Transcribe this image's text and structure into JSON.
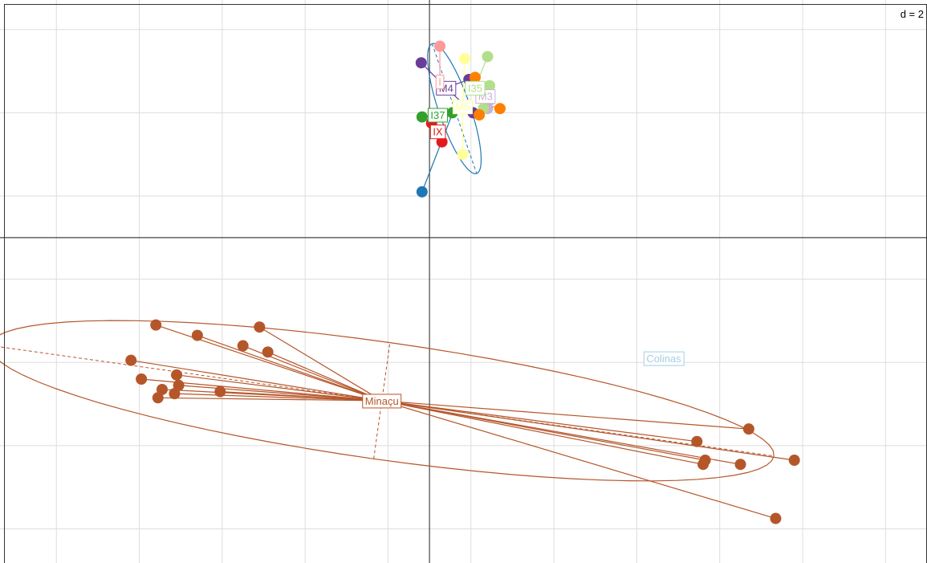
{
  "chart_data": {
    "type": "scatter",
    "scale_label": "d = 2",
    "grid": true,
    "xlim": [
      -10.36,
      12.0
    ],
    "ylim": [
      -7.82,
      5.71
    ],
    "groups": [
      {
        "name": "Minaçu",
        "color": "#B5562A",
        "center": [
          -1.15,
          -3.92
        ],
        "ellipse": {
          "rx": 9.55,
          "ry": 1.41,
          "rotation_deg": -8.0
        },
        "points": [
          [
            -6.6,
            -2.1
          ],
          [
            -5.6,
            -2.35
          ],
          [
            -4.1,
            -2.15
          ],
          [
            -4.5,
            -2.6
          ],
          [
            -3.9,
            -2.75
          ],
          [
            -7.2,
            -2.95
          ],
          [
            -6.95,
            -3.4
          ],
          [
            -6.1,
            -3.3
          ],
          [
            -6.05,
            -3.55
          ],
          [
            -6.45,
            -3.65
          ],
          [
            -6.15,
            -3.75
          ],
          [
            -6.55,
            -3.85
          ],
          [
            -5.05,
            -3.7
          ],
          [
            6.45,
            -4.9
          ],
          [
            7.7,
            -4.6
          ],
          [
            6.65,
            -5.35
          ],
          [
            6.6,
            -5.45
          ],
          [
            7.5,
            -5.45
          ],
          [
            8.8,
            -5.35
          ],
          [
            8.35,
            -6.75
          ]
        ]
      },
      {
        "name": "Colinas",
        "color": "#A6CEE3",
        "center": [
          5.65,
          -2.9
        ],
        "points": []
      },
      {
        "name": "M4",
        "color": "#6A3D9A",
        "center": [
          0.4,
          3.6
        ],
        "points": [
          [
            -0.2,
            4.2
          ],
          [
            1.05,
            3.0
          ],
          [
            0.95,
            3.8
          ]
        ]
      },
      {
        "name": "M3",
        "color": "#CAB2D6",
        "center": [
          1.35,
          3.4
        ],
        "points": [
          [
            1.4,
            3.1
          ],
          [
            1.45,
            3.3
          ]
        ]
      },
      {
        "name": "I37",
        "color": "#33A02C",
        "center": [
          0.2,
          2.95
        ],
        "points": [
          [
            -0.18,
            2.9
          ],
          [
            0.55,
            3.0
          ]
        ]
      },
      {
        "name": "IX",
        "color": "#E31A1C",
        "center": [
          0.2,
          2.55
        ],
        "points": [
          [
            0.3,
            2.3
          ],
          [
            0.05,
            2.75
          ]
        ]
      },
      {
        "name": "I35",
        "color": "#B2DF8A",
        "center": [
          1.1,
          3.6
        ],
        "points": [
          [
            1.4,
            4.35
          ],
          [
            1.45,
            3.65
          ],
          [
            1.3,
            3.1
          ]
        ]
      },
      {
        "name": "M5",
        "color": "#FFFF99",
        "center": [
          0.8,
          3.15
        ],
        "points": [
          [
            0.85,
            4.3
          ],
          [
            0.8,
            2.0
          ]
        ]
      },
      {
        "name": "I",
        "color": "#FB9A99",
        "center": [
          0.25,
          3.75
        ],
        "points": [
          [
            0.25,
            4.6
          ]
        ]
      },
      {
        "name": "",
        "color": "#FF7F00",
        "center": [
          1.35,
          3.2
        ],
        "points": [
          [
            1.7,
            3.1
          ],
          [
            1.2,
            2.95
          ],
          [
            1.1,
            3.85
          ]
        ]
      },
      {
        "name": "",
        "color": "#1F78B4",
        "center": [
          0.6,
          3.1
        ],
        "ellipse": {
          "rx": 1.65,
          "ry": 0.38,
          "rotation_deg": -71.0
        },
        "points": [
          [
            -0.18,
            1.1
          ]
        ]
      }
    ]
  }
}
